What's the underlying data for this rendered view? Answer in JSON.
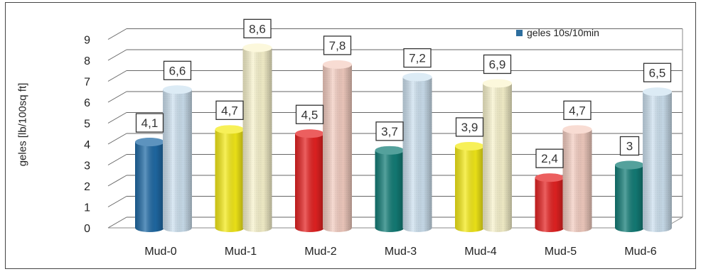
{
  "chart_data": {
    "type": "bar",
    "title": "",
    "xlabel": "",
    "ylabel": "geles [lb/100sq ft]",
    "ylim": [
      0,
      9
    ],
    "yticks": [
      "0",
      "1",
      "2",
      "3",
      "4",
      "5",
      "6",
      "7",
      "8",
      "9"
    ],
    "categories": [
      "Mud-0",
      "Mud-1",
      "Mud-2",
      "Mud-3",
      "Mud-4",
      "Mud-5",
      "Mud-6"
    ],
    "legend": {
      "label": "geles 10s/10min",
      "position": "top-right"
    },
    "series": [
      {
        "values": [
          4.1,
          4.7,
          4.5,
          3.7,
          3.9,
          2.4,
          3.0
        ],
        "labels": [
          "4,1",
          "4,7",
          "4,5",
          "3,7",
          "3,9",
          "2,4",
          "3"
        ],
        "colors": [
          "#1f6aa5",
          "#f4ea18",
          "#e52222",
          "#137d77",
          "#f4ea18",
          "#e52222",
          "#137d77"
        ]
      },
      {
        "values": [
          6.6,
          8.6,
          7.8,
          7.2,
          6.9,
          4.7,
          6.5
        ],
        "labels": [
          "6,6",
          "8,6",
          "7,8",
          "7,2",
          "6,9",
          "4,7",
          "6,5"
        ],
        "colors": [
          "#cfe3f2",
          "#fbf6cf",
          "#f6cfc3",
          "#cfe3f2",
          "#fbf6cf",
          "#f6cfc3",
          "#cfe3f2"
        ]
      }
    ]
  }
}
